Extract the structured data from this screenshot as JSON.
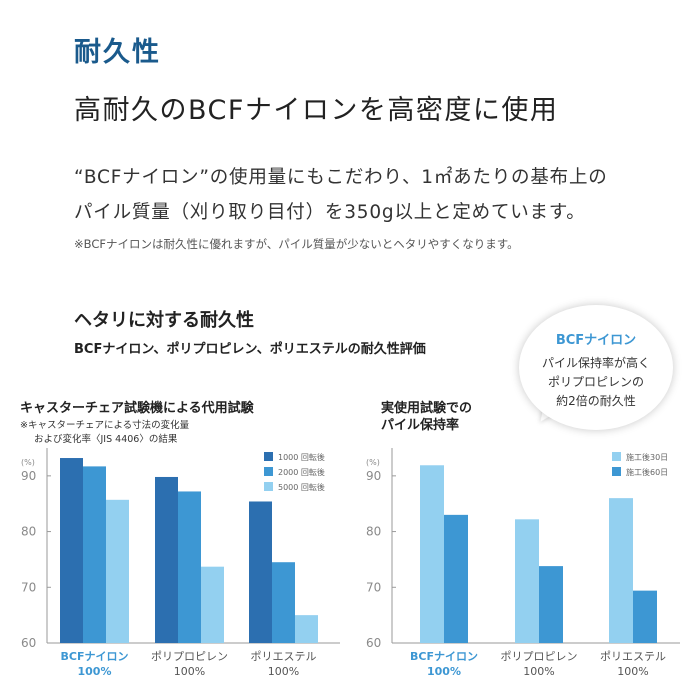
{
  "section_title": "耐久性",
  "headline": "高耐久のBCFナイロンを高密度に使用",
  "body": {
    "line1": "“BCFナイロン”の使用量にもこだわり、1㎡あたりの基布上の",
    "line2": "パイル質量（刈り取り目付）を350g以上と定めています。",
    "note": "※BCFナイロンは耐久性に優れますが、パイル質量が少ないとヘタリやすくなります。"
  },
  "subsection": {
    "title": "ヘタリに対する耐久性",
    "description": "BCFナイロン、ポリプロピレン、ポリエステルの耐久性評価"
  },
  "bubble": {
    "title": "BCFナイロン",
    "line1": "パイル保持率が高く",
    "line2": "ポリプロピレンの",
    "line3": "約2倍の耐久性"
  },
  "colors": {
    "title_blue": "#1a5a8c",
    "accent_blue": "#3d97d3",
    "series_dark": "#2c6fb0",
    "series_mid": "#3d97d3",
    "series_light": "#93d0f0"
  },
  "chart_data": [
    {
      "type": "bar",
      "title": "キャスターチェア試験機による代用試験",
      "notes": [
        "※キャスターチェアによる寸法の変化量",
        "および変化率〈JIS 4406〉の結果"
      ],
      "ylabel": "(%)",
      "ylim": [
        60,
        95
      ],
      "yticks": [
        60,
        70,
        80,
        90
      ],
      "categories": [
        "BCFナイロン\n100%",
        "ポリプロピレン\n100%",
        "ポリエステル\n100%"
      ],
      "categories_top": [
        "BCFナイロン",
        "ポリプロピレン",
        "ポリエステル"
      ],
      "categories_bottom": [
        "100%",
        "100%",
        "100%"
      ],
      "series": [
        {
          "name": "1000 回転後",
          "values": [
            93.2,
            89.8,
            85.4
          ],
          "color": "#2c6fb0"
        },
        {
          "name": "2000 回転後",
          "values": [
            91.7,
            87.2,
            74.5
          ],
          "color": "#3d97d3"
        },
        {
          "name": "5000 回転後",
          "values": [
            85.7,
            73.7,
            65.0
          ],
          "color": "#93d0f0"
        }
      ],
      "legend": "top-right",
      "grid": false
    },
    {
      "type": "bar",
      "title": "実使用試験での\nパイル保持率",
      "title_lines": [
        "実使用試験での",
        "パイル保持率"
      ],
      "ylabel": "(%)",
      "ylim": [
        60,
        95
      ],
      "yticks": [
        60,
        70,
        80,
        90
      ],
      "categories": [
        "BCFナイロン\n100%",
        "ポリプロピレン\n100%",
        "ポリエステル\n100%"
      ],
      "categories_top": [
        "BCFナイロン",
        "ポリプロピレン",
        "ポリエステル"
      ],
      "categories_bottom": [
        "100%",
        "100%",
        "100%"
      ],
      "series": [
        {
          "name": "施工後30日",
          "values": [
            91.9,
            82.2,
            86.0
          ],
          "color": "#93d0f0"
        },
        {
          "name": "施工後60日",
          "values": [
            83.0,
            73.8,
            69.4
          ],
          "color": "#3d97d3"
        }
      ],
      "legend": "top-right",
      "grid": false
    }
  ]
}
